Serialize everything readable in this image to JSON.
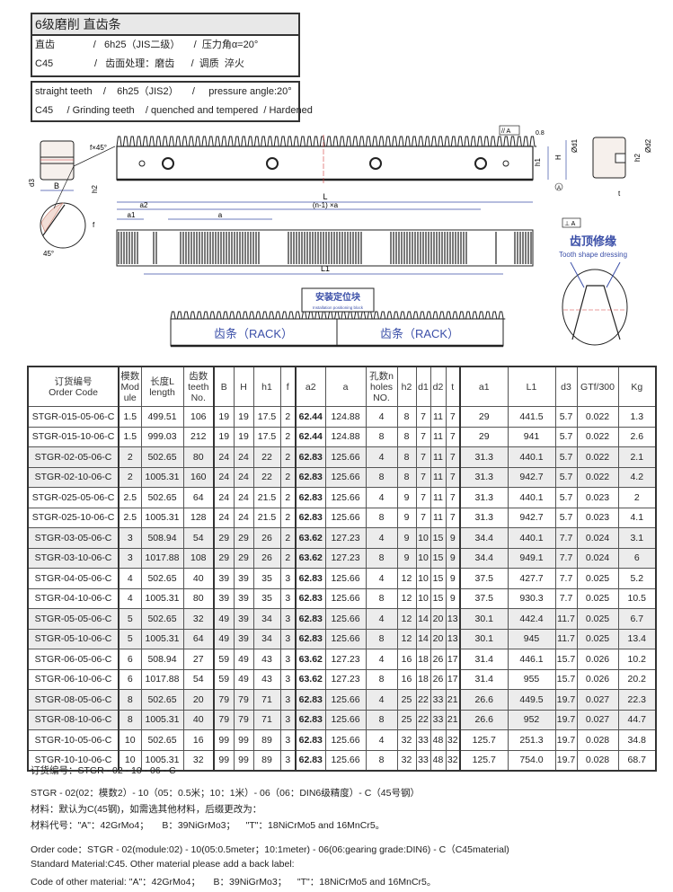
{
  "spec_box_cn": {
    "title": "6级磨削 直齿条",
    "line1": "直齿              /   6h25（JIS二级）     /  压力角α=20°",
    "line2": "C45               /   齿面处理：磨齿      /  调质  淬火"
  },
  "spec_box_en": {
    "line1": "straight teeth    /    6h25（JIS2）     /     pressure angle:20°",
    "line2": "C45     / Grinding teeth    / quenched and tempered  / Hardened"
  },
  "drawing": {
    "labels": {
      "chamfer": "f×45°",
      "B": "B",
      "d3": "d3",
      "h2": "h2",
      "f": "f",
      "angle45": "45°",
      "L": "L",
      "n_minus_1_a": "(n-1) ×a",
      "a2": "a2",
      "a1": "a1",
      "a": "a",
      "L1": "L1",
      "h1": "h1",
      "H": "H",
      "roughness": "0.8",
      "datum": "A",
      "parallel": "// A",
      "perpendicular": "⊥ A",
      "d1": "Ød1",
      "d2": "Ød2",
      "t": "t",
      "dressing_cn": "齿顶修缘",
      "dressing_en": "Tooth shape dressing",
      "block_cn": "安装定位块",
      "block_en": "Installation positioning block",
      "rack_left": "齿条（RACK）",
      "rack_right": "齿条（RACK）"
    },
    "colors": {
      "line": "#222222",
      "dimension": "#3b4fa8",
      "center": "#d23a3a",
      "hatch": "#c97a6a"
    }
  },
  "table": {
    "headers": [
      [
        "订货编号",
        "Order Code"
      ],
      [
        "模数",
        "Mod",
        "ule"
      ],
      [
        "长度L",
        "length"
      ],
      [
        "齿数",
        "teeth",
        "No."
      ],
      [
        "B"
      ],
      [
        "H"
      ],
      [
        "h1"
      ],
      [
        "f"
      ],
      [
        "a2"
      ],
      [
        "a"
      ],
      [
        "孔数n",
        "holes",
        "NO."
      ],
      [
        "h2"
      ],
      [
        "d1"
      ],
      [
        "d2"
      ],
      [
        "t"
      ],
      [
        "a1"
      ],
      [
        "L1"
      ],
      [
        "d3"
      ],
      [
        "GTf/300"
      ],
      [
        "Kg"
      ]
    ],
    "rows": [
      [
        "STGR-015-05-06-C",
        "1.5",
        "499.51",
        "106",
        "19",
        "19",
        "17.5",
        "2",
        "62.44",
        "124.88",
        "4",
        "8",
        "7",
        "11",
        "7",
        "29",
        "441.5",
        "5.7",
        "0.022",
        "1.3"
      ],
      [
        "STGR-015-10-06-C",
        "1.5",
        "999.03",
        "212",
        "19",
        "19",
        "17.5",
        "2",
        "62.44",
        "124.88",
        "8",
        "8",
        "7",
        "11",
        "7",
        "29",
        "941",
        "5.7",
        "0.022",
        "2.6"
      ],
      [
        "STGR-02-05-06-C",
        "2",
        "502.65",
        "80",
        "24",
        "24",
        "22",
        "2",
        "62.83",
        "125.66",
        "4",
        "8",
        "7",
        "11",
        "7",
        "31.3",
        "440.1",
        "5.7",
        "0.022",
        "2.1"
      ],
      [
        "STGR-02-10-06-C",
        "2",
        "1005.31",
        "160",
        "24",
        "24",
        "22",
        "2",
        "62.83",
        "125.66",
        "8",
        "8",
        "7",
        "11",
        "7",
        "31.3",
        "942.7",
        "5.7",
        "0.022",
        "4.2"
      ],
      [
        "STGR-025-05-06-C",
        "2.5",
        "502.65",
        "64",
        "24",
        "24",
        "21.5",
        "2",
        "62.83",
        "125.66",
        "4",
        "9",
        "7",
        "11",
        "7",
        "31.3",
        "440.1",
        "5.7",
        "0.023",
        "2"
      ],
      [
        "STGR-025-10-06-C",
        "2.5",
        "1005.31",
        "128",
        "24",
        "24",
        "21.5",
        "2",
        "62.83",
        "125.66",
        "8",
        "9",
        "7",
        "11",
        "7",
        "31.3",
        "942.7",
        "5.7",
        "0.023",
        "4.1"
      ],
      [
        "STGR-03-05-06-C",
        "3",
        "508.94",
        "54",
        "29",
        "29",
        "26",
        "2",
        "63.62",
        "127.23",
        "4",
        "9",
        "10",
        "15",
        "9",
        "34.4",
        "440.1",
        "7.7",
        "0.024",
        "3.1"
      ],
      [
        "STGR-03-10-06-C",
        "3",
        "1017.88",
        "108",
        "29",
        "29",
        "26",
        "2",
        "63.62",
        "127.23",
        "8",
        "9",
        "10",
        "15",
        "9",
        "34.4",
        "949.1",
        "7.7",
        "0.024",
        "6"
      ],
      [
        "STGR-04-05-06-C",
        "4",
        "502.65",
        "40",
        "39",
        "39",
        "35",
        "3",
        "62.83",
        "125.66",
        "4",
        "12",
        "10",
        "15",
        "9",
        "37.5",
        "427.7",
        "7.7",
        "0.025",
        "5.2"
      ],
      [
        "STGR-04-10-06-C",
        "4",
        "1005.31",
        "80",
        "39",
        "39",
        "35",
        "3",
        "62.83",
        "125.66",
        "8",
        "12",
        "10",
        "15",
        "9",
        "37.5",
        "930.3",
        "7.7",
        "0.025",
        "10.5"
      ],
      [
        "STGR-05-05-06-C",
        "5",
        "502.65",
        "32",
        "49",
        "39",
        "34",
        "3",
        "62.83",
        "125.66",
        "4",
        "12",
        "14",
        "20",
        "13",
        "30.1",
        "442.4",
        "11.7",
        "0.025",
        "6.7"
      ],
      [
        "STGR-05-10-06-C",
        "5",
        "1005.31",
        "64",
        "49",
        "39",
        "34",
        "3",
        "62.83",
        "125.66",
        "8",
        "12",
        "14",
        "20",
        "13",
        "30.1",
        "945",
        "11.7",
        "0.025",
        "13.4"
      ],
      [
        "STGR-06-05-06-C",
        "6",
        "508.94",
        "27",
        "59",
        "49",
        "43",
        "3",
        "63.62",
        "127.23",
        "4",
        "16",
        "18",
        "26",
        "17",
        "31.4",
        "446.1",
        "15.7",
        "0.026",
        "10.2"
      ],
      [
        "STGR-06-10-06-C",
        "6",
        "1017.88",
        "54",
        "59",
        "49",
        "43",
        "3",
        "63.62",
        "127.23",
        "8",
        "16",
        "18",
        "26",
        "17",
        "31.4",
        "955",
        "15.7",
        "0.026",
        "20.2"
      ],
      [
        "STGR-08-05-06-C",
        "8",
        "502.65",
        "20",
        "79",
        "79",
        "71",
        "3",
        "62.83",
        "125.66",
        "4",
        "25",
        "22",
        "33",
        "21",
        "26.6",
        "449.5",
        "19.7",
        "0.027",
        "22.3"
      ],
      [
        "STGR-08-10-06-C",
        "8",
        "1005.31",
        "40",
        "79",
        "79",
        "71",
        "3",
        "62.83",
        "125.66",
        "8",
        "25",
        "22",
        "33",
        "21",
        "26.6",
        "952",
        "19.7",
        "0.027",
        "44.7"
      ],
      [
        "STGR-10-05-06-C",
        "10",
        "502.65",
        "16",
        "99",
        "99",
        "89",
        "3",
        "62.83",
        "125.66",
        "4",
        "32",
        "33",
        "48",
        "32",
        "125.7",
        "251.3",
        "19.7",
        "0.028",
        "34.8"
      ],
      [
        "STGR-10-10-06-C",
        "10",
        "1005.31",
        "32",
        "99",
        "99",
        "89",
        "3",
        "62.83",
        "125.66",
        "8",
        "32",
        "33",
        "48",
        "32",
        "125.7",
        "754.0",
        "19.7",
        "0.028",
        "68.7"
      ]
    ],
    "row_shade_color": "#ececec"
  },
  "notes": {
    "cn_order": "订货编号：STGR - 02 - 10 - 06 - C",
    "cn_explain": "STGR - 02(02：模数2）- 10（05：0.5米；10：1米）- 06（06：DIN6级精度）- C（45号钢）",
    "cn_material": "材料：默认为C(45钢)，如需选其他材料，后缀更改为：",
    "cn_codes": "材料代号：\"A\"：42GrMo4；     B：39NiGrMo3；    \"T\"：18NiCrMo5 and 16MnCr5。",
    "en_order": "Order code：STGR - 02(module:02) - 10(05:0.5meter；10:1meter) - 06(06:gearing grade:DIN6) - C（C45material)",
    "en_standard": "Standard Material:C45. Other material please add a back label:",
    "en_codes": "Code of other material: \"A\"：42GrMo4；     B：39NiGrMo3；    \"T\"：18NiCrMo5 and 16MnCr5。"
  }
}
